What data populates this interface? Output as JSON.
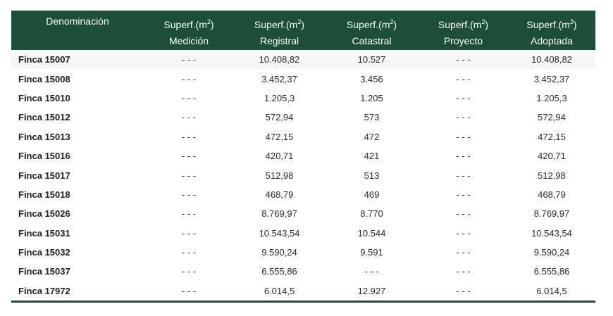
{
  "header": {
    "denominacion": "Denominación",
    "superf_prefix": "Superf.(m",
    "superf_exp": "2",
    "superf_suffix": ")",
    "sub": [
      "Medición",
      "Registral",
      "Catastral",
      "Proyecto",
      "Adoptada"
    ]
  },
  "rows": [
    {
      "name": "Finca 15007",
      "medicion": "- - -",
      "registral": "10.408,82",
      "catastral": "10.527",
      "proyecto": "- - -",
      "adoptada": "10.408,82"
    },
    {
      "name": "Finca 15008",
      "medicion": "- - -",
      "registral": "3.452,37",
      "catastral": "3.456",
      "proyecto": "- - -",
      "adoptada": "3.452,37"
    },
    {
      "name": "Finca 15010",
      "medicion": "- - -",
      "registral": "1.205,3",
      "catastral": "1.205",
      "proyecto": "- - -",
      "adoptada": "1.205,3"
    },
    {
      "name": "Finca 15012",
      "medicion": "- - -",
      "registral": "572,94",
      "catastral": "573",
      "proyecto": "- - -",
      "adoptada": "572,94"
    },
    {
      "name": "Finca 15013",
      "medicion": "- - -",
      "registral": "472,15",
      "catastral": "472",
      "proyecto": "- - -",
      "adoptada": "472,15"
    },
    {
      "name": "Finca 15016",
      "medicion": "- - -",
      "registral": "420,71",
      "catastral": "421",
      "proyecto": "- - -",
      "adoptada": "420,71"
    },
    {
      "name": "Finca 15017",
      "medicion": "- - -",
      "registral": "512,98",
      "catastral": "513",
      "proyecto": "- - -",
      "adoptada": "512,98"
    },
    {
      "name": "Finca 15018",
      "medicion": "- - -",
      "registral": "468,79",
      "catastral": "469",
      "proyecto": "- - -",
      "adoptada": "468,79"
    },
    {
      "name": "Finca 15026",
      "medicion": "- - -",
      "registral": "8.769,97",
      "catastral": "8.770",
      "proyecto": "- - -",
      "adoptada": "8.769,97"
    },
    {
      "name": "Finca 15031",
      "medicion": "- - -",
      "registral": "10.543,54",
      "catastral": "10.544",
      "proyecto": "- - -",
      "adoptada": "10.543,54"
    },
    {
      "name": "Finca 15032",
      "medicion": "- - -",
      "registral": "9.590,24",
      "catastral": "9.591",
      "proyecto": "- - -",
      "adoptada": "9.590,24"
    },
    {
      "name": "Finca 15037",
      "medicion": "- - -",
      "registral": "6.555,86",
      "catastral": "- - -",
      "proyecto": "- - -",
      "adoptada": "6.555,86"
    },
    {
      "name": "Finca 17972",
      "medicion": "- - -",
      "registral": "6.014,5",
      "catastral": "12.927",
      "proyecto": "- - -",
      "adoptada": "6.014,5"
    }
  ],
  "colors": {
    "header_bg": "#1d4e38",
    "header_text": "#ffffff"
  }
}
